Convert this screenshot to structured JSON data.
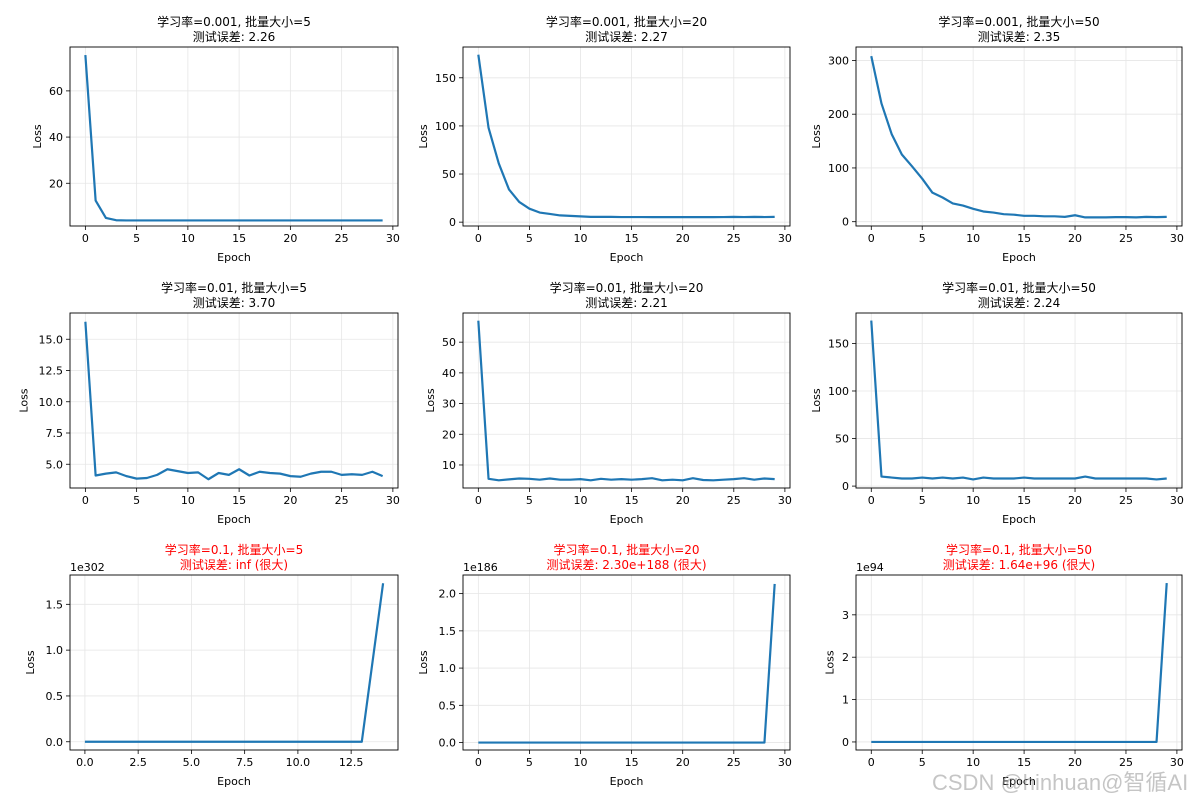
{
  "watermark": "CSDN @hinhuan@智循AI",
  "style": {
    "line_color": "#1f77b4",
    "title_color": "#000000",
    "warning_title_color": "#ff0000",
    "grid_color": "#e6e6e6"
  },
  "chart_data": [
    {
      "type": "line",
      "title": "学习率=0.001, 批量大小=5",
      "subtitle": "测试误差: 2.26",
      "title_color": "normal",
      "xlabel": "Epoch",
      "ylabel": "Loss",
      "xlim": [
        -1.5,
        30.5
      ],
      "ylim": [
        1.5,
        79
      ],
      "xticks": [
        0,
        5,
        10,
        15,
        20,
        25,
        30
      ],
      "xtick_labels": [
        "0",
        "5",
        "10",
        "15",
        "20",
        "25",
        "30"
      ],
      "yticks": [
        20,
        40,
        60
      ],
      "ytick_labels": [
        "20",
        "40",
        "60"
      ],
      "exponent_label": "",
      "x": [
        0,
        1,
        2,
        3,
        4,
        5,
        6,
        7,
        8,
        9,
        10,
        11,
        12,
        13,
        14,
        15,
        16,
        17,
        18,
        19,
        20,
        21,
        22,
        23,
        24,
        25,
        26,
        27,
        28,
        29
      ],
      "y": [
        75.5,
        12.5,
        5.0,
        4.0,
        3.9,
        3.9,
        3.9,
        3.9,
        3.9,
        3.9,
        3.9,
        3.9,
        3.9,
        3.9,
        3.9,
        3.9,
        3.9,
        3.9,
        3.9,
        3.9,
        3.9,
        3.9,
        3.9,
        3.9,
        3.9,
        3.9,
        3.9,
        3.9,
        3.9,
        3.9
      ]
    },
    {
      "type": "line",
      "title": "学习率=0.001, 批量大小=20",
      "subtitle": "测试误差: 2.27",
      "title_color": "normal",
      "xlabel": "Epoch",
      "ylabel": "Loss",
      "xlim": [
        -1.5,
        30.5
      ],
      "ylim": [
        -4,
        182
      ],
      "xticks": [
        0,
        5,
        10,
        15,
        20,
        25,
        30
      ],
      "xtick_labels": [
        "0",
        "5",
        "10",
        "15",
        "20",
        "25",
        "30"
      ],
      "yticks": [
        0,
        50,
        100,
        150
      ],
      "ytick_labels": [
        "0",
        "50",
        "100",
        "150"
      ],
      "exponent_label": "",
      "x": [
        0,
        1,
        2,
        3,
        4,
        5,
        6,
        7,
        8,
        9,
        10,
        11,
        12,
        13,
        14,
        15,
        16,
        17,
        18,
        19,
        20,
        21,
        22,
        23,
        24,
        25,
        26,
        27,
        28,
        29
      ],
      "y": [
        174,
        98,
        61,
        34,
        21,
        14,
        10,
        8.5,
        7,
        6.5,
        6,
        5.5,
        5.5,
        5.5,
        5.3,
        5.3,
        5.3,
        5.2,
        5.2,
        5.2,
        5.2,
        5.2,
        5.2,
        5.2,
        5.3,
        5.5,
        5.3,
        5.5,
        5.3,
        5.5
      ]
    },
    {
      "type": "line",
      "title": "学习率=0.001, 批量大小=50",
      "subtitle": "测试误差: 2.35",
      "title_color": "normal",
      "xlabel": "Epoch",
      "ylabel": "Loss",
      "xlim": [
        -1.5,
        30.5
      ],
      "ylim": [
        -8,
        325
      ],
      "xticks": [
        0,
        5,
        10,
        15,
        20,
        25,
        30
      ],
      "xtick_labels": [
        "0",
        "5",
        "10",
        "15",
        "20",
        "25",
        "30"
      ],
      "yticks": [
        0,
        100,
        200,
        300
      ],
      "ytick_labels": [
        "0",
        "100",
        "200",
        "300"
      ],
      "exponent_label": "",
      "x": [
        0,
        1,
        2,
        3,
        4,
        5,
        6,
        7,
        8,
        9,
        10,
        11,
        12,
        13,
        14,
        15,
        16,
        17,
        18,
        19,
        20,
        21,
        22,
        23,
        24,
        25,
        26,
        27,
        28,
        29
      ],
      "y": [
        308,
        220,
        163,
        125,
        103,
        80,
        54,
        45,
        34,
        30,
        24,
        19,
        17,
        14,
        13,
        11,
        11,
        10,
        10,
        9,
        12,
        8,
        8,
        8,
        8.5,
        8.5,
        8,
        9,
        8.5,
        9
      ]
    },
    {
      "type": "line",
      "title": "学习率=0.01, 批量大小=5",
      "subtitle": "测试误差: 3.70",
      "title_color": "normal",
      "xlabel": "Epoch",
      "ylabel": "Loss",
      "xlim": [
        -1.5,
        30.5
      ],
      "ylim": [
        3.1,
        17.1
      ],
      "xticks": [
        0,
        5,
        10,
        15,
        20,
        25,
        30
      ],
      "xtick_labels": [
        "0",
        "5",
        "10",
        "15",
        "20",
        "25",
        "30"
      ],
      "yticks": [
        5,
        7.5,
        10,
        12.5,
        15
      ],
      "ytick_labels": [
        "5.0",
        "7.5",
        "10.0",
        "12.5",
        "15.0"
      ],
      "exponent_label": "",
      "x": [
        0,
        1,
        2,
        3,
        4,
        5,
        6,
        7,
        8,
        9,
        10,
        11,
        12,
        13,
        14,
        15,
        16,
        17,
        18,
        19,
        20,
        21,
        22,
        23,
        24,
        25,
        26,
        27,
        28,
        29
      ],
      "y": [
        16.4,
        4.1,
        4.25,
        4.35,
        4.05,
        3.85,
        3.9,
        4.15,
        4.6,
        4.45,
        4.3,
        4.35,
        3.8,
        4.3,
        4.15,
        4.6,
        4.1,
        4.4,
        4.3,
        4.25,
        4.05,
        4.0,
        4.25,
        4.4,
        4.4,
        4.15,
        4.2,
        4.15,
        4.4,
        4.05
      ]
    },
    {
      "type": "line",
      "title": "学习率=0.01, 批量大小=20",
      "subtitle": "测试误差: 2.21",
      "title_color": "normal",
      "xlabel": "Epoch",
      "ylabel": "Loss",
      "xlim": [
        -1.5,
        30.5
      ],
      "ylim": [
        2.5,
        59.5
      ],
      "xticks": [
        0,
        5,
        10,
        15,
        20,
        25,
        30
      ],
      "xtick_labels": [
        "0",
        "5",
        "10",
        "15",
        "20",
        "25",
        "30"
      ],
      "yticks": [
        10,
        20,
        30,
        40,
        50
      ],
      "ytick_labels": [
        "10",
        "20",
        "30",
        "40",
        "50"
      ],
      "exponent_label": "",
      "x": [
        0,
        1,
        2,
        3,
        4,
        5,
        6,
        7,
        8,
        9,
        10,
        11,
        12,
        13,
        14,
        15,
        16,
        17,
        18,
        19,
        20,
        21,
        22,
        23,
        24,
        25,
        26,
        27,
        28,
        29
      ],
      "y": [
        57,
        5.5,
        5.0,
        5.3,
        5.6,
        5.5,
        5.2,
        5.6,
        5.2,
        5.2,
        5.4,
        5.0,
        5.5,
        5.2,
        5.4,
        5.2,
        5.4,
        5.7,
        5.0,
        5.2,
        5.0,
        5.7,
        5.1,
        5.0,
        5.2,
        5.4,
        5.7,
        5.2,
        5.6,
        5.4
      ]
    },
    {
      "type": "line",
      "title": "学习率=0.01, 批量大小=50",
      "subtitle": "测试误差: 2.24",
      "title_color": "normal",
      "xlabel": "Epoch",
      "ylabel": "Loss",
      "xlim": [
        -1.5,
        30.5
      ],
      "ylim": [
        -2,
        182
      ],
      "xticks": [
        0,
        5,
        10,
        15,
        20,
        25,
        30
      ],
      "xtick_labels": [
        "0",
        "5",
        "10",
        "15",
        "20",
        "25",
        "30"
      ],
      "yticks": [
        0,
        50,
        100,
        150
      ],
      "ytick_labels": [
        "0",
        "50",
        "100",
        "150"
      ],
      "exponent_label": "",
      "x": [
        0,
        1,
        2,
        3,
        4,
        5,
        6,
        7,
        8,
        9,
        10,
        11,
        12,
        13,
        14,
        15,
        16,
        17,
        18,
        19,
        20,
        21,
        22,
        23,
        24,
        25,
        26,
        27,
        28,
        29
      ],
      "y": [
        174,
        10,
        9,
        8,
        8,
        9,
        8,
        9,
        8,
        9,
        7,
        9,
        8,
        8,
        8,
        9,
        8,
        8,
        8,
        8,
        8,
        10,
        8,
        8,
        8,
        8,
        8,
        8,
        7,
        8
      ]
    },
    {
      "type": "line",
      "title": "学习率=0.1, 批量大小=5",
      "subtitle": "测试误差: inf (很大)",
      "title_color": "warning",
      "xlabel": "Epoch",
      "ylabel": "Loss",
      "xlim": [
        -0.7,
        14.7
      ],
      "ylim": [
        -0.09,
        1.82
      ],
      "xticks": [
        0,
        2.5,
        5,
        7.5,
        10,
        12.5
      ],
      "xtick_labels": [
        "0.0",
        "2.5",
        "5.0",
        "7.5",
        "10.0",
        "12.5"
      ],
      "yticks": [
        0,
        0.5,
        1.0,
        1.5
      ],
      "ytick_labels": [
        "0.0",
        "0.5",
        "1.0",
        "1.5"
      ],
      "exponent_label": "1e302",
      "x": [
        0,
        1,
        2,
        3,
        4,
        5,
        6,
        7,
        8,
        9,
        10,
        11,
        12,
        13,
        14
      ],
      "y": [
        0,
        0,
        0,
        0,
        0,
        0,
        0,
        0,
        0,
        0,
        0,
        0,
        0,
        0,
        1.73
      ]
    },
    {
      "type": "line",
      "title": "学习率=0.1, 批量大小=20",
      "subtitle": "测试误差: 2.30e+188 (很大)",
      "title_color": "warning",
      "xlabel": "Epoch",
      "ylabel": "Loss",
      "xlim": [
        -1.5,
        30.5
      ],
      "ylim": [
        -0.1,
        2.25
      ],
      "xticks": [
        0,
        5,
        10,
        15,
        20,
        25,
        30
      ],
      "xtick_labels": [
        "0",
        "5",
        "10",
        "15",
        "20",
        "25",
        "30"
      ],
      "yticks": [
        0,
        0.5,
        1.0,
        1.5,
        2.0
      ],
      "ytick_labels": [
        "0.0",
        "0.5",
        "1.0",
        "1.5",
        "2.0"
      ],
      "exponent_label": "1e186",
      "x": [
        0,
        1,
        2,
        3,
        4,
        5,
        6,
        7,
        8,
        9,
        10,
        11,
        12,
        13,
        14,
        15,
        16,
        17,
        18,
        19,
        20,
        21,
        22,
        23,
        24,
        25,
        26,
        27,
        28,
        29
      ],
      "y": [
        0,
        0,
        0,
        0,
        0,
        0,
        0,
        0,
        0,
        0,
        0,
        0,
        0,
        0,
        0,
        0,
        0,
        0,
        0,
        0,
        0,
        0,
        0,
        0,
        0,
        0,
        0,
        0,
        0,
        2.13
      ]
    },
    {
      "type": "line",
      "title": "学习率=0.1, 批量大小=50",
      "subtitle": "测试误差: 1.64e+96 (很大)",
      "title_color": "warning",
      "xlabel": "Epoch",
      "ylabel": "Loss",
      "xlim": [
        -1.5,
        30.5
      ],
      "ylim": [
        -0.19,
        3.94
      ],
      "xticks": [
        0,
        5,
        10,
        15,
        20,
        25,
        30
      ],
      "xtick_labels": [
        "0",
        "5",
        "10",
        "15",
        "20",
        "25",
        "30"
      ],
      "yticks": [
        0,
        1,
        2,
        3
      ],
      "ytick_labels": [
        "0",
        "1",
        "2",
        "3"
      ],
      "exponent_label": "1e94",
      "x": [
        0,
        1,
        2,
        3,
        4,
        5,
        6,
        7,
        8,
        9,
        10,
        11,
        12,
        13,
        14,
        15,
        16,
        17,
        18,
        19,
        20,
        21,
        22,
        23,
        24,
        25,
        26,
        27,
        28,
        29
      ],
      "y": [
        0,
        0,
        0,
        0,
        0,
        0,
        0,
        0,
        0,
        0,
        0,
        0,
        0,
        0,
        0,
        0,
        0,
        0,
        0,
        0,
        0,
        0,
        0,
        0,
        0,
        0,
        0,
        0,
        0,
        3.75
      ]
    }
  ]
}
